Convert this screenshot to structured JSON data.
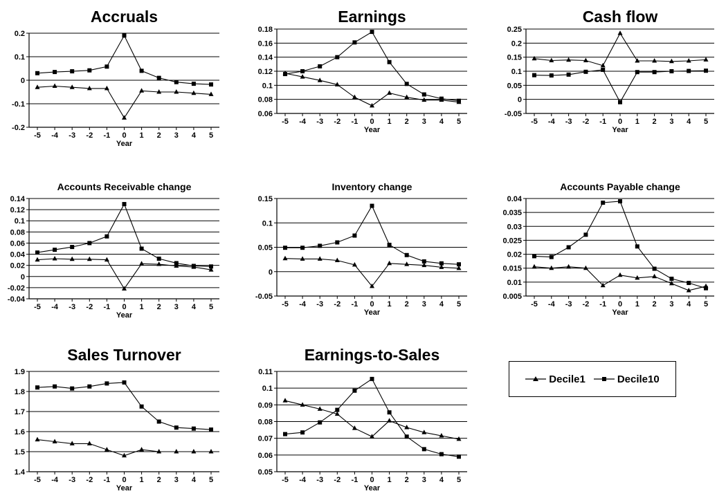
{
  "legend": {
    "series": [
      {
        "name": "Decile1",
        "marker": "triangle"
      },
      {
        "name": "Decile10",
        "marker": "square"
      }
    ]
  },
  "chart_data": [
    {
      "type": "line",
      "title": "Accruals",
      "xlabel": "Year",
      "ylabel": "",
      "x": [
        -5,
        -4,
        -3,
        -2,
        -1,
        0,
        1,
        2,
        3,
        4,
        5
      ],
      "ylim": [
        -0.2,
        0.2
      ],
      "yticks": [
        -0.2,
        -0.1,
        0,
        0.1,
        0.2
      ],
      "ytick_labels": [
        "-0.2",
        "-0.1",
        "0",
        "0.1",
        "0.2"
      ],
      "grid": true,
      "series": [
        {
          "name": "Decile1",
          "marker": "triangle",
          "values": [
            -0.03,
            -0.025,
            -0.03,
            -0.035,
            -0.035,
            -0.16,
            -0.045,
            -0.05,
            -0.05,
            -0.055,
            -0.06
          ]
        },
        {
          "name": "Decile10",
          "marker": "square",
          "values": [
            0.03,
            0.035,
            0.038,
            0.042,
            0.058,
            0.19,
            0.04,
            0.01,
            -0.008,
            -0.015,
            -0.018
          ]
        }
      ]
    },
    {
      "type": "line",
      "title": "Earnings",
      "xlabel": "Year",
      "ylabel": "",
      "x": [
        -5,
        -4,
        -3,
        -2,
        -1,
        0,
        1,
        2,
        3,
        4,
        5
      ],
      "ylim": [
        0.06,
        0.18
      ],
      "yticks": [
        0.06,
        0.08,
        0.1,
        0.12,
        0.14,
        0.16,
        0.18
      ],
      "ytick_labels": [
        "0.06",
        "0.08",
        "0.1",
        "0.12",
        "0.14",
        "0.16",
        "0.18"
      ],
      "grid": true,
      "series": [
        {
          "name": "Decile1",
          "marker": "triangle",
          "values": [
            0.117,
            0.112,
            0.107,
            0.101,
            0.083,
            0.071,
            0.089,
            0.083,
            0.079,
            0.079,
            0.076
          ]
        },
        {
          "name": "Decile10",
          "marker": "square",
          "values": [
            0.116,
            0.12,
            0.127,
            0.14,
            0.161,
            0.176,
            0.133,
            0.102,
            0.087,
            0.081,
            0.078
          ]
        }
      ]
    },
    {
      "type": "line",
      "title": "Cash flow",
      "xlabel": "Year",
      "ylabel": "",
      "x": [
        -5,
        -4,
        -3,
        -2,
        -1,
        0,
        1,
        2,
        3,
        4,
        5
      ],
      "ylim": [
        -0.05,
        0.25
      ],
      "yticks": [
        -0.05,
        0,
        0.05,
        0.1,
        0.15,
        0.2,
        0.25
      ],
      "ytick_labels": [
        "-0.05",
        "0",
        "0.05",
        "0.1",
        "0.15",
        "0.2",
        "0.25"
      ],
      "grid": true,
      "series": [
        {
          "name": "Decile1",
          "marker": "triangle",
          "values": [
            0.145,
            0.138,
            0.14,
            0.138,
            0.12,
            0.235,
            0.137,
            0.137,
            0.135,
            0.137,
            0.141
          ]
        },
        {
          "name": "Decile10",
          "marker": "square",
          "values": [
            0.086,
            0.085,
            0.088,
            0.098,
            0.105,
            -0.01,
            0.097,
            0.097,
            0.1,
            0.101,
            0.102
          ]
        }
      ]
    },
    {
      "type": "line",
      "title": "Accounts Receivable change",
      "xlabel": "Year",
      "ylabel": "",
      "x": [
        -5,
        -4,
        -3,
        -2,
        -1,
        0,
        1,
        2,
        3,
        4,
        5
      ],
      "ylim": [
        -0.04,
        0.14
      ],
      "yticks": [
        -0.04,
        -0.02,
        0,
        0.02,
        0.04,
        0.06,
        0.08,
        0.1,
        0.12,
        0.14
      ],
      "ytick_labels": [
        "-0.04",
        "-0.02",
        "0",
        "0.02",
        "0.04",
        "0.06",
        "0.08",
        "0.1",
        "0.12",
        "0.14"
      ],
      "grid": true,
      "series": [
        {
          "name": "Decile1",
          "marker": "triangle",
          "values": [
            0.03,
            0.032,
            0.031,
            0.031,
            0.03,
            -0.022,
            0.023,
            0.022,
            0.019,
            0.017,
            0.012
          ]
        },
        {
          "name": "Decile10",
          "marker": "square",
          "values": [
            0.043,
            0.048,
            0.053,
            0.06,
            0.072,
            0.13,
            0.05,
            0.032,
            0.024,
            0.019,
            0.018
          ]
        }
      ]
    },
    {
      "type": "line",
      "title": "Inventory change",
      "xlabel": "Year",
      "ylabel": "",
      "x": [
        -5,
        -4,
        -3,
        -2,
        -1,
        0,
        1,
        2,
        3,
        4,
        5
      ],
      "ylim": [
        -0.05,
        0.15
      ],
      "yticks": [
        -0.05,
        0,
        0.05,
        0.1,
        0.15
      ],
      "ytick_labels": [
        "-0.05",
        "0",
        "0.05",
        "0.1",
        "0.15"
      ],
      "grid": true,
      "series": [
        {
          "name": "Decile1",
          "marker": "triangle",
          "values": [
            0.027,
            0.026,
            0.026,
            0.023,
            0.014,
            -0.03,
            0.017,
            0.015,
            0.013,
            0.009,
            0.007
          ]
        },
        {
          "name": "Decile10",
          "marker": "square",
          "values": [
            0.049,
            0.049,
            0.053,
            0.06,
            0.074,
            0.135,
            0.055,
            0.034,
            0.021,
            0.017,
            0.015
          ]
        }
      ]
    },
    {
      "type": "line",
      "title": "Accounts Payable change",
      "xlabel": "Year",
      "ylabel": "",
      "x": [
        -5,
        -4,
        -3,
        -2,
        -1,
        0,
        1,
        2,
        3,
        4,
        5
      ],
      "ylim": [
        0.005,
        0.04
      ],
      "yticks": [
        0.005,
        0.01,
        0.015,
        0.02,
        0.025,
        0.03,
        0.035,
        0.04
      ],
      "ytick_labels": [
        "0.005",
        "0.01",
        "0.015",
        "0.02",
        "0.025",
        "0.03",
        "0.035",
        "0.04"
      ],
      "grid": true,
      "series": [
        {
          "name": "Decile1",
          "marker": "triangle",
          "values": [
            0.0155,
            0.015,
            0.0155,
            0.015,
            0.0088,
            0.0125,
            0.0115,
            0.012,
            0.0095,
            0.007,
            0.0085
          ]
        },
        {
          "name": "Decile10",
          "marker": "square",
          "values": [
            0.0193,
            0.019,
            0.0225,
            0.027,
            0.0385,
            0.039,
            0.0228,
            0.0148,
            0.0112,
            0.0097,
            0.0078
          ]
        }
      ]
    },
    {
      "type": "line",
      "title": "Sales Turnover",
      "xlabel": "Year",
      "ylabel": "",
      "x": [
        -5,
        -4,
        -3,
        -2,
        -1,
        0,
        1,
        2,
        3,
        4,
        5
      ],
      "ylim": [
        1.4,
        1.9
      ],
      "yticks": [
        1.4,
        1.5,
        1.6,
        1.7,
        1.8,
        1.9
      ],
      "ytick_labels": [
        "1.4",
        "1.5",
        "1.6",
        "1.7",
        "1.8",
        "1.9"
      ],
      "grid": true,
      "series": [
        {
          "name": "Decile1",
          "marker": "triangle",
          "values": [
            1.56,
            1.55,
            1.54,
            1.54,
            1.51,
            1.48,
            1.51,
            1.5,
            1.5,
            1.5,
            1.5
          ]
        },
        {
          "name": "Decile10",
          "marker": "square",
          "values": [
            1.82,
            1.825,
            1.815,
            1.825,
            1.84,
            1.845,
            1.725,
            1.65,
            1.62,
            1.615,
            1.61
          ]
        }
      ]
    },
    {
      "type": "line",
      "title": "Earnings-to-Sales",
      "xlabel": "Year",
      "ylabel": "",
      "x": [
        -5,
        -4,
        -3,
        -2,
        -1,
        0,
        1,
        2,
        3,
        4,
        5
      ],
      "ylim": [
        0.05,
        0.11
      ],
      "yticks": [
        0.05,
        0.06,
        0.07,
        0.08,
        0.09,
        0.1,
        0.11
      ],
      "ytick_labels": [
        "0.05",
        "0.06",
        "0.07",
        "0.08",
        "0.09",
        "0.1",
        "0.11"
      ],
      "grid": true,
      "series": [
        {
          "name": "Decile1",
          "marker": "triangle",
          "values": [
            0.0925,
            0.09,
            0.0875,
            0.0845,
            0.076,
            0.071,
            0.0805,
            0.0765,
            0.0735,
            0.0715,
            0.0695
          ]
        },
        {
          "name": "Decile10",
          "marker": "square",
          "values": [
            0.0725,
            0.0735,
            0.0795,
            0.087,
            0.0985,
            0.1055,
            0.0855,
            0.071,
            0.0635,
            0.0605,
            0.059
          ]
        }
      ]
    }
  ]
}
